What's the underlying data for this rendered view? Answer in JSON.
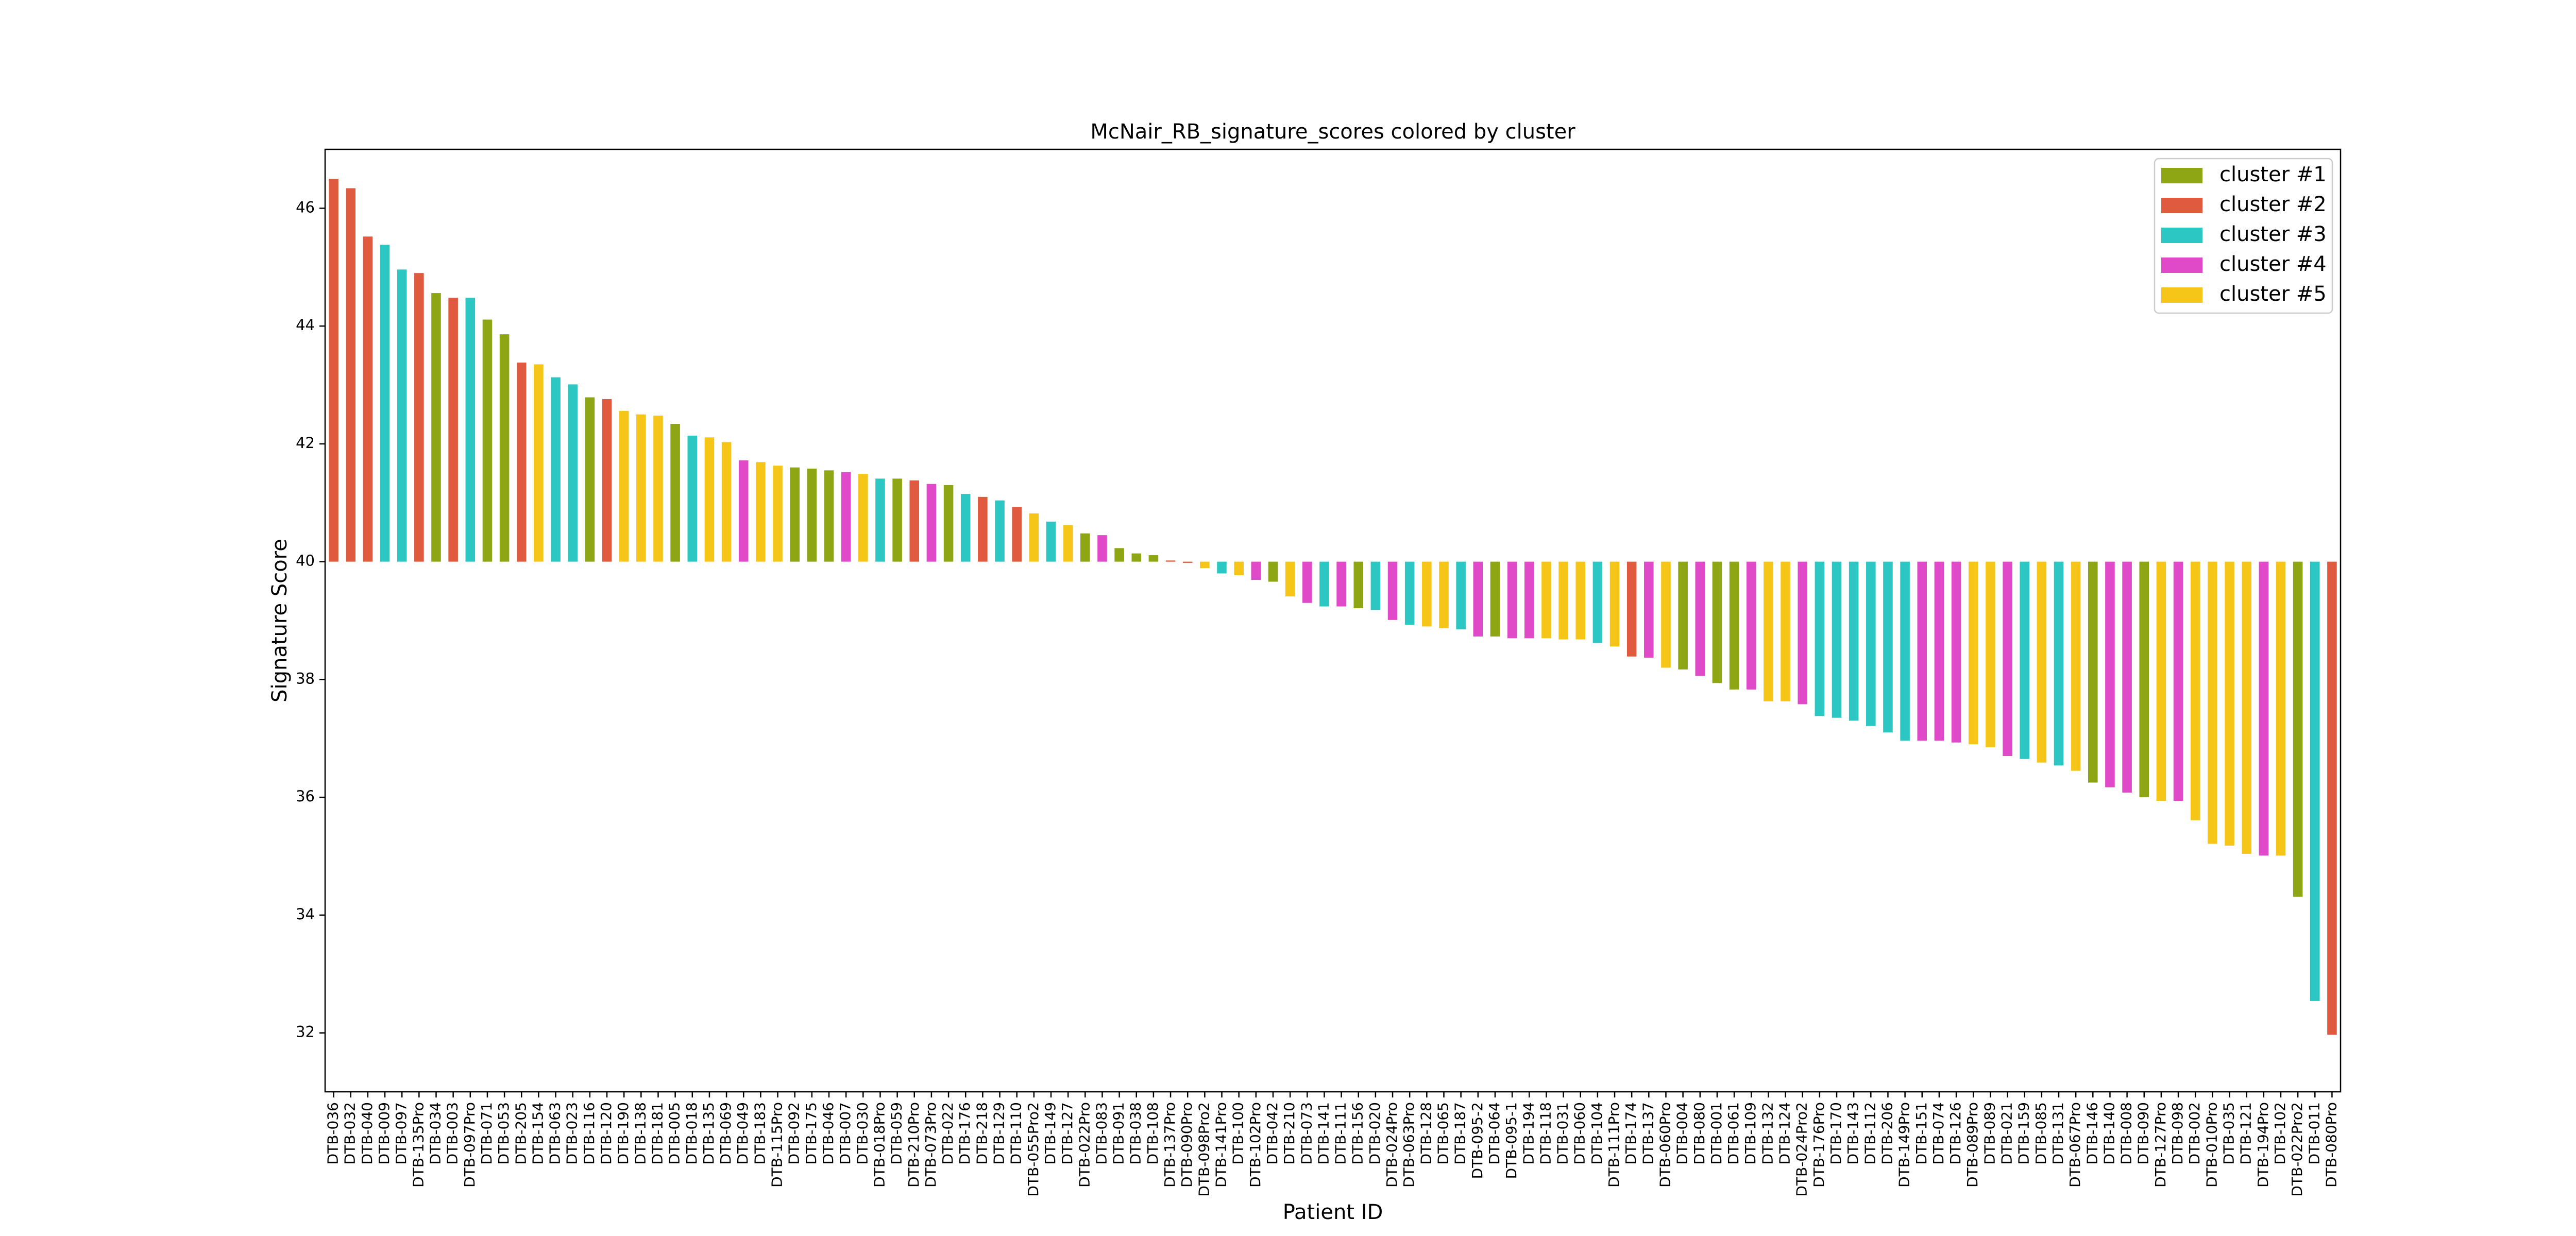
{
  "chart_data": {
    "type": "bar",
    "title": "McNair_RB_signature_scores colored by cluster",
    "xlabel": "Patient ID",
    "ylabel": "Signature Score",
    "categories": [
      "DTB-036",
      "DTB-032",
      "DTB-040",
      "DTB-009",
      "DTB-097",
      "DTB-135Pro",
      "DTB-034",
      "DTB-003",
      "DTB-097Pro",
      "DTB-071",
      "DTB-053",
      "DTB-205",
      "DTB-154",
      "DTB-063",
      "DTB-023",
      "DTB-116",
      "DTB-120",
      "DTB-190",
      "DTB-138",
      "DTB-181",
      "DTB-005",
      "DTB-018",
      "DTB-135",
      "DTB-069",
      "DTB-049",
      "DTB-183",
      "DTB-115Pro",
      "DTB-092",
      "DTB-175",
      "DTB-046",
      "DTB-007",
      "DTB-030",
      "DTB-018Pro",
      "DTB-059",
      "DTB-210Pro",
      "DTB-073Pro",
      "DTB-022",
      "DTB-176",
      "DTB-218",
      "DTB-129",
      "DTB-110",
      "DTB-055Pro2",
      "DTB-149",
      "DTB-127",
      "DTB-022Pro",
      "DTB-083",
      "DTB-091",
      "DTB-038",
      "DTB-108",
      "DTB-137Pro",
      "DTB-090Pro",
      "DTB-098Pro2",
      "DTB-141Pro",
      "DTB-100",
      "DTB-102Pro",
      "DTB-042",
      "DTB-210",
      "DTB-073",
      "DTB-141",
      "DTB-111",
      "DTB-156",
      "DTB-020",
      "DTB-024Pro",
      "DTB-063Pro",
      "DTB-128",
      "DTB-065",
      "DTB-187",
      "DTB-095-2",
      "DTB-064",
      "DTB-095-1",
      "DTB-194",
      "DTB-118",
      "DTB-031",
      "DTB-060",
      "DTB-104",
      "DTB-111Pro",
      "DTB-174",
      "DTB-137",
      "DTB-060Pro",
      "DTB-004",
      "DTB-080",
      "DTB-001",
      "DTB-061",
      "DTB-109",
      "DTB-132",
      "DTB-124",
      "DTB-024Pro2",
      "DTB-176Pro",
      "DTB-170",
      "DTB-143",
      "DTB-112",
      "DTB-206",
      "DTB-149Pro",
      "DTB-151",
      "DTB-074",
      "DTB-126",
      "DTB-089Pro",
      "DTB-089",
      "DTB-021",
      "DTB-159",
      "DTB-085",
      "DTB-131",
      "DTB-067Pro",
      "DTB-146",
      "DTB-140",
      "DTB-008",
      "DTB-090",
      "DTB-127Pro",
      "DTB-098",
      "DTB-002",
      "DTB-010Pro",
      "DTB-035",
      "DTB-121",
      "DTB-194Pro",
      "DTB-102",
      "DTB-022Pro2",
      "DTB-011",
      "DTB-080Pro"
    ],
    "values": [
      46.5,
      46.34,
      45.52,
      45.38,
      44.96,
      44.9,
      44.56,
      44.48,
      44.48,
      44.11,
      43.86,
      43.38,
      43.35,
      43.13,
      43.01,
      42.79,
      42.76,
      42.56,
      42.5,
      42.48,
      42.34,
      42.14,
      42.11,
      42.03,
      41.72,
      41.69,
      41.63,
      41.6,
      41.58,
      41.55,
      41.52,
      41.49,
      41.41,
      41.41,
      41.38,
      41.32,
      41.3,
      41.15,
      41.1,
      41.04,
      40.93,
      40.82,
      40.68,
      40.62,
      40.48,
      40.45,
      40.23,
      40.14,
      40.11,
      40.02,
      39.98,
      39.89,
      39.8,
      39.77,
      39.69,
      39.66,
      39.41,
      39.3,
      39.24,
      39.24,
      39.21,
      39.18,
      39.01,
      38.93,
      38.9,
      38.87,
      38.85,
      38.73,
      38.73,
      38.7,
      38.7,
      38.7,
      38.68,
      38.68,
      38.62,
      38.56,
      38.39,
      38.37,
      38.2,
      38.17,
      38.06,
      37.94,
      37.83,
      37.83,
      37.63,
      37.63,
      37.58,
      37.38,
      37.35,
      37.3,
      37.21,
      37.1,
      36.96,
      36.96,
      36.96,
      36.93,
      36.9,
      36.85,
      36.7,
      36.65,
      36.59,
      36.54,
      36.45,
      36.25,
      36.17,
      36.08,
      36.0,
      35.94,
      35.94,
      35.61,
      35.21,
      35.18,
      35.04,
      35.01,
      35.01,
      34.31,
      32.54,
      31.97
    ],
    "colors": [
      "#e05a3f",
      "#e05a3f",
      "#e05a3f",
      "#2cc7c3",
      "#2cc7c3",
      "#e05a3f",
      "#8ea613",
      "#e05a3f",
      "#2cc7c3",
      "#8ea613",
      "#8ea613",
      "#e05a3f",
      "#f5c518",
      "#2cc7c3",
      "#2cc7c3",
      "#8ea613",
      "#e05a3f",
      "#f5c518",
      "#f5c518",
      "#f5c518",
      "#8ea613",
      "#2cc7c3",
      "#f5c518",
      "#f5c518",
      "#e04ac8",
      "#f5c518",
      "#f5c518",
      "#8ea613",
      "#8ea613",
      "#8ea613",
      "#e04ac8",
      "#f5c518",
      "#2cc7c3",
      "#8ea613",
      "#e05a3f",
      "#e04ac8",
      "#8ea613",
      "#2cc7c3",
      "#e05a3f",
      "#2cc7c3",
      "#e05a3f",
      "#f5c518",
      "#2cc7c3",
      "#f5c518",
      "#8ea613",
      "#e04ac8",
      "#8ea613",
      "#8ea613",
      "#8ea613",
      "#e05a3f",
      "#e05a3f",
      "#f5c518",
      "#2cc7c3",
      "#f5c518",
      "#e04ac8",
      "#8ea613",
      "#f5c518",
      "#e04ac8",
      "#2cc7c3",
      "#e04ac8",
      "#8ea613",
      "#2cc7c3",
      "#e04ac8",
      "#2cc7c3",
      "#f5c518",
      "#f5c518",
      "#2cc7c3",
      "#e04ac8",
      "#8ea613",
      "#e04ac8",
      "#e04ac8",
      "#f5c518",
      "#f5c518",
      "#f5c518",
      "#2cc7c3",
      "#f5c518",
      "#e05a3f",
      "#e04ac8",
      "#f5c518",
      "#8ea613",
      "#e04ac8",
      "#8ea613",
      "#8ea613",
      "#e04ac8",
      "#f5c518",
      "#f5c518",
      "#e04ac8",
      "#2cc7c3",
      "#2cc7c3",
      "#2cc7c3",
      "#2cc7c3",
      "#2cc7c3",
      "#2cc7c3",
      "#e04ac8",
      "#e04ac8",
      "#e04ac8",
      "#f5c518",
      "#f5c518",
      "#e04ac8",
      "#2cc7c3",
      "#f5c518",
      "#2cc7c3",
      "#f5c518",
      "#8ea613",
      "#e04ac8",
      "#e04ac8",
      "#8ea613",
      "#f5c518",
      "#e04ac8",
      "#f5c518",
      "#f5c518",
      "#f5c518",
      "#f5c518",
      "#e04ac8",
      "#f5c518",
      "#8ea613",
      "#2cc7c3",
      "#e05a3f"
    ],
    "legend": [
      {
        "name": "cluster #1",
        "color": "#8ea613"
      },
      {
        "name": "cluster #2",
        "color": "#e05a3f"
      },
      {
        "name": "cluster #3",
        "color": "#2cc7c3"
      },
      {
        "name": "cluster #4",
        "color": "#e04ac8"
      },
      {
        "name": "cluster #5",
        "color": "#f5c518"
      }
    ],
    "legend_position": "upper right",
    "bar_base": 40,
    "ylim": [
      31,
      47
    ],
    "yticks": [
      32,
      34,
      36,
      38,
      40,
      42,
      44,
      46
    ],
    "grid": false
  }
}
